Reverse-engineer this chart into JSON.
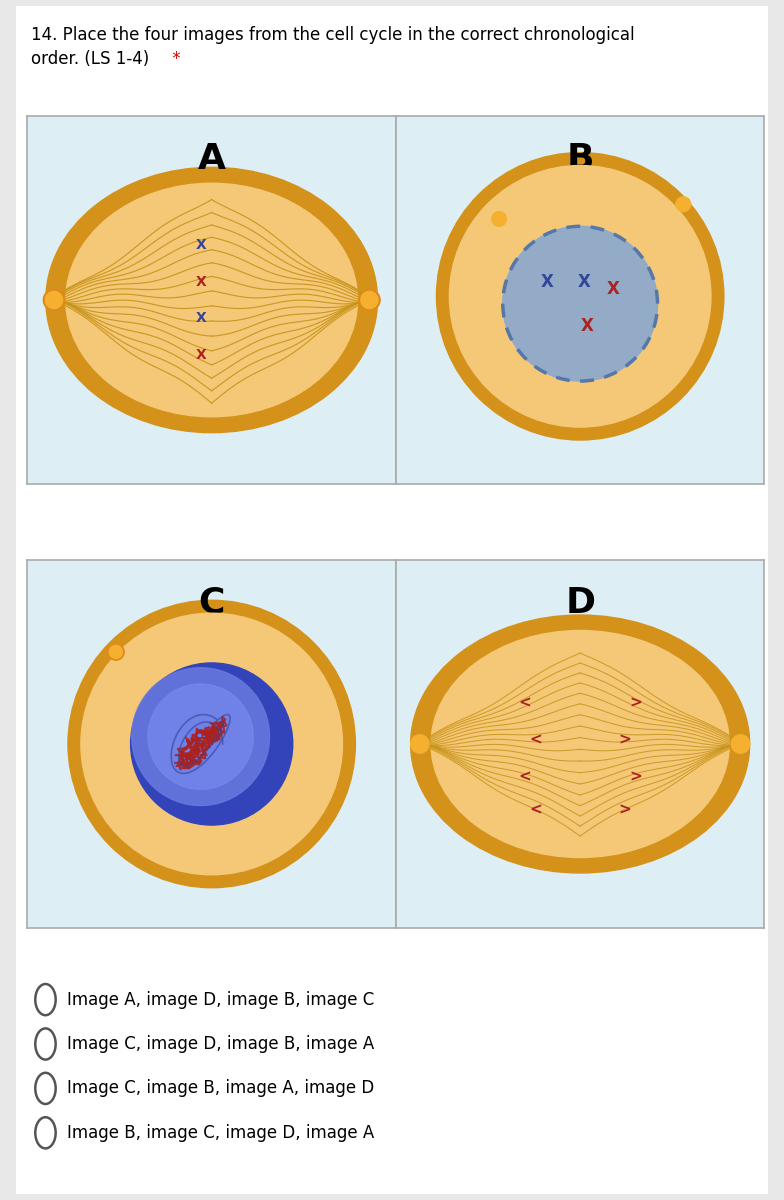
{
  "title_line1": "14. Place the four images from the cell cycle in the correct chronological",
  "title_line2": "order. (LS 1-4)",
  "title_star": " *",
  "title_star_color": "#cc0000",
  "bg_color": "#ffffff",
  "outer_bg": "#e8e8e8",
  "panel_bg": "#ddeef5",
  "cell_border_color": "#d4921a",
  "cell_fill_color": "#f5c878",
  "cell_inner_color": "#f8dda0",
  "spindle_color": "#c8941a",
  "options": [
    "Image A, image D, image B, image C",
    "Image C, image D, image B, image A",
    "Image C, image B, image A, image D",
    "Image B, image C, image D, image A"
  ],
  "panel_border_color": "#aaaaaa",
  "nucleus_fill_B": "#8aa8d0",
  "nucleus_border_B": "#5577aa",
  "chrom_blue": "#334499",
  "chrom_red": "#aa2222",
  "nucleus_fill_C": "#5566cc",
  "nucleus_grad_C": "#7788dd",
  "chrom_color_C": "#aa2222",
  "chrom_outline_C": "#334499",
  "centriole_color": "#e08818",
  "centriole_fill": "#f5b030"
}
